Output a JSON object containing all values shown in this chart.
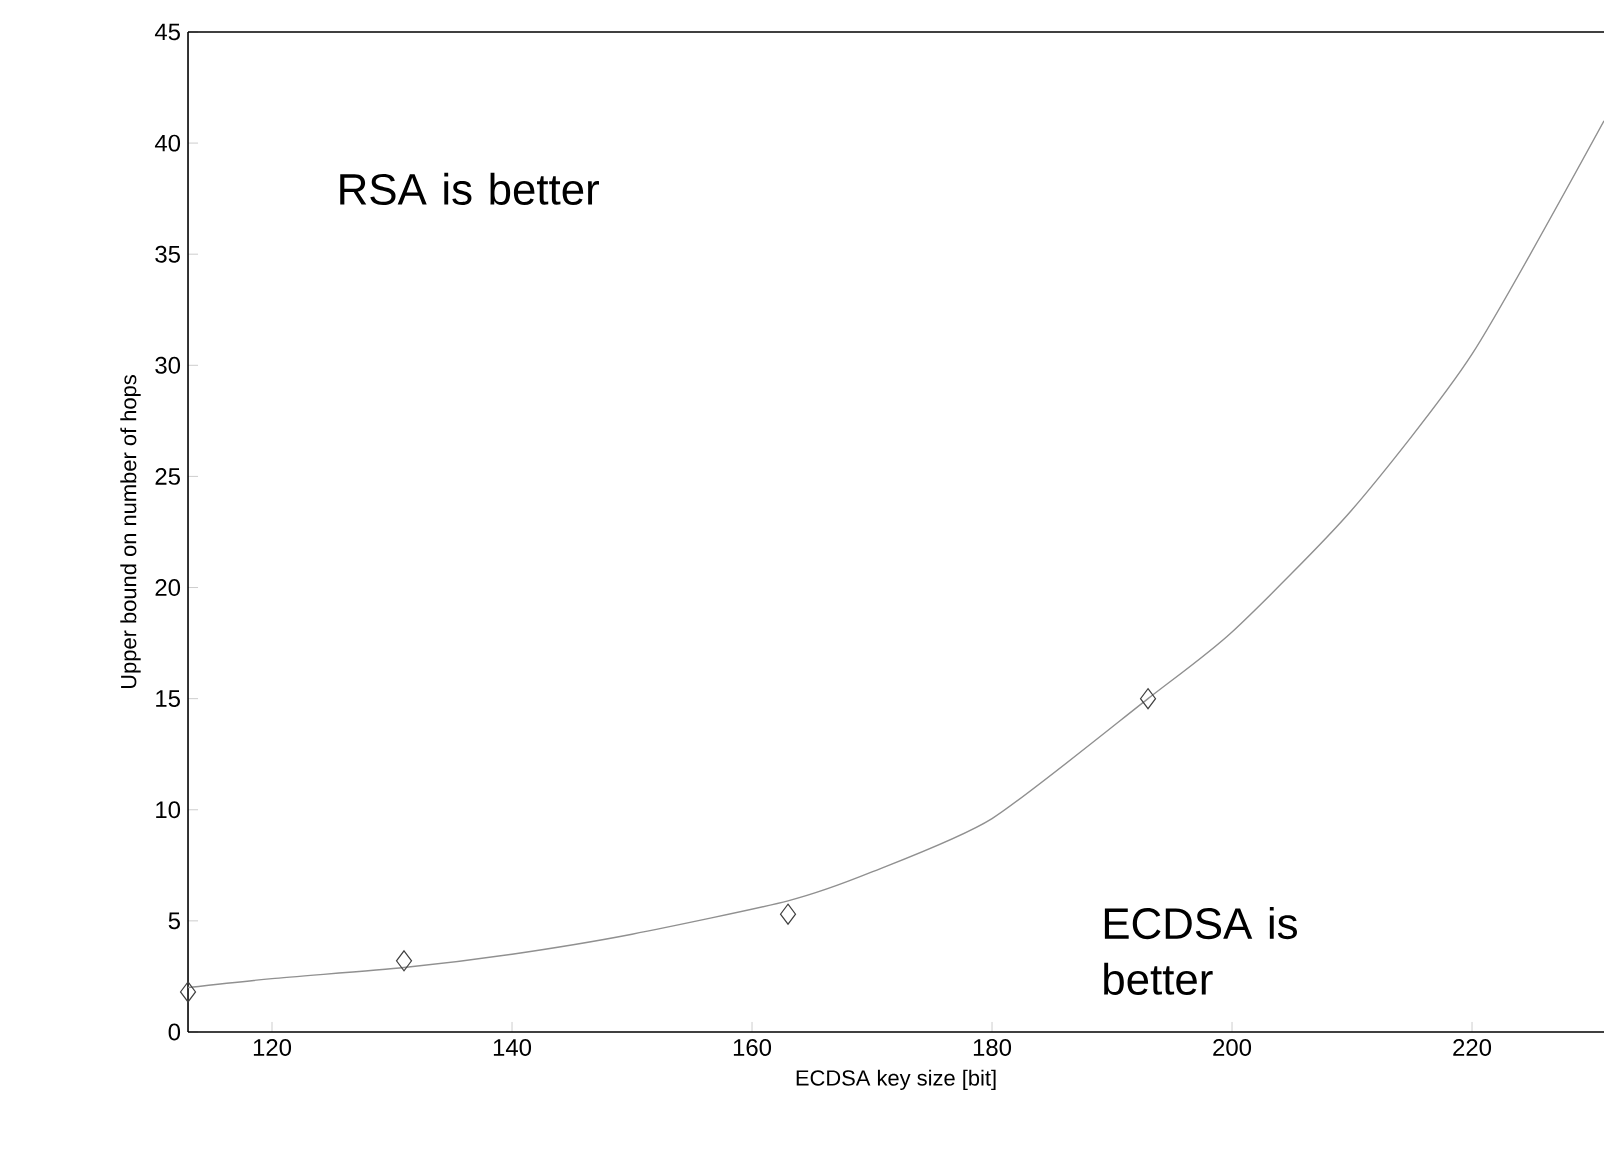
{
  "chart_data": {
    "type": "scatter",
    "xlabel": "ECDSA key size [bit]",
    "ylabel": "Upper bound on number of hops",
    "annotations": [
      "RSA is better",
      "ECDSA is better"
    ],
    "xlim": [
      113,
      231
    ],
    "xticks": [
      120,
      140,
      160,
      180,
      200,
      220
    ],
    "ylim": [
      0,
      45
    ],
    "yticks": [
      0,
      5,
      10,
      15,
      20,
      25,
      30,
      35,
      40,
      45
    ],
    "series": [
      {
        "color": "#404040",
        "marker": "diamond",
        "x": [
          113,
          131,
          163,
          193
        ],
        "values": [
          1.8,
          3.2,
          5.3,
          15.0
        ]
      },
      {
        "type": "line",
        "color": "#909090",
        "marker": "none",
        "line_style": "solid",
        "x": [
          113,
          120,
          131,
          140,
          150,
          163,
          170,
          180,
          193,
          200,
          210,
          220,
          231
        ],
        "values": [
          2.0,
          2.4,
          2.9,
          3.5,
          4.4,
          5.9,
          7.2,
          9.6,
          15.0,
          18,
          23.5,
          30.5,
          41
        ]
      }
    ]
  }
}
